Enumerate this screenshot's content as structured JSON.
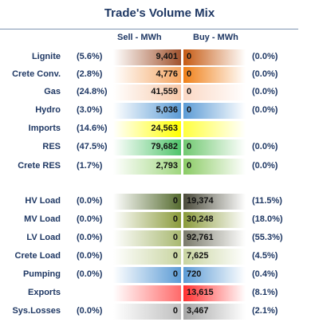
{
  "title": "Trade's Volume Mix",
  "headers": {
    "sell": "Sell - MWh",
    "buy": "Buy - MWh"
  },
  "rows": [
    {
      "label": "Lignite",
      "pct_left": "(5.6%)",
      "sell": "9,401",
      "buy": "0",
      "pct_right": "(0.0%)",
      "sell_color": "#a0522d",
      "buy_color": "#c65a12"
    },
    {
      "label": "Crete Conv.",
      "pct_left": "(2.8%)",
      "sell": "4,776",
      "buy": "0",
      "pct_right": "(0.0%)",
      "sell_color": "#f4a460",
      "buy_color": "#f08018"
    },
    {
      "label": "Gas",
      "pct_left": "(24.8%)",
      "sell": "41,559",
      "buy": "0",
      "pct_right": "(0.0%)",
      "sell_color": "#f7c8a8",
      "buy_color": "#fbd8c4"
    },
    {
      "label": "Hydro",
      "pct_left": "(3.0%)",
      "sell": "5,036",
      "buy": "0",
      "pct_right": "(0.0%)",
      "sell_color": "#5b9bd5",
      "buy_color": "#5b9bd5"
    },
    {
      "label": "Imports",
      "pct_left": "(14.6%)",
      "sell": "24,563",
      "buy": "",
      "pct_right": "",
      "sell_color": "#ffff00",
      "buy_color": "#ffff40"
    },
    {
      "label": "RES",
      "pct_left": "(47.5%)",
      "sell": "79,682",
      "buy": "0",
      "pct_right": "(0.0%)",
      "sell_color": "#4fc46a",
      "buy_color": "#70c870"
    },
    {
      "label": "Crete RES",
      "pct_left": "(1.7%)",
      "sell": "2,793",
      "buy": "0",
      "pct_right": "(0.0%)",
      "sell_color": "#9fd67e",
      "buy_color": "#8acb64"
    },
    {
      "label": "HV Load",
      "pct_left": "(0.0%)",
      "sell": "0",
      "buy": "19,374",
      "pct_right": "(11.5%)",
      "sell_color": "#556b2f",
      "buy_color": "#4a4a3a"
    },
    {
      "label": "MV Load",
      "pct_left": "(0.0%)",
      "sell": "0",
      "buy": "30,248",
      "pct_right": "(18.0%)",
      "sell_color": "#8a9a3a",
      "buy_color": "#8a9a3a"
    },
    {
      "label": "LV Load",
      "pct_left": "(0.0%)",
      "sell": "0",
      "buy": "92,761",
      "pct_right": "(55.3%)",
      "sell_color": "#a8b870",
      "buy_color": "#7a7a6a"
    },
    {
      "label": "Crete Load",
      "pct_left": "(0.0%)",
      "sell": "0",
      "buy": "7,625",
      "pct_right": "(4.5%)",
      "sell_color": "#c8d4a0",
      "buy_color": "#c8d4a0"
    },
    {
      "label": "Pumping",
      "pct_left": "(0.0%)",
      "sell": "0",
      "buy": "720",
      "pct_right": "(0.4%)",
      "sell_color": "#5b9bd5",
      "buy_color": "#5b9bd5"
    },
    {
      "label": "Exports",
      "pct_left": "",
      "sell": "",
      "buy": "13,615",
      "pct_right": "(8.1%)",
      "sell_color": "#ff6a6a",
      "buy_color": "#ff3030"
    },
    {
      "label": "Sys.Losses",
      "pct_left": "(0.0%)",
      "sell": "0",
      "buy": "3,467",
      "pct_right": "(2.1%)",
      "sell_color": "#bfbfbf",
      "buy_color": "#a6a6a6"
    }
  ]
}
